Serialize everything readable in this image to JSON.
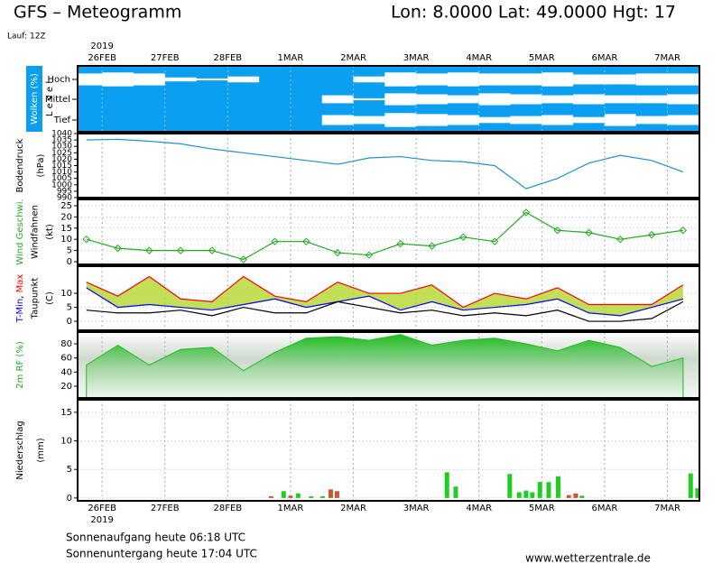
{
  "header": {
    "title": "GFS – Meteogramm",
    "location": "Lon: 8.0000 Lat: 49.0000 Hgt: 17",
    "run": "Lauf: 12Z"
  },
  "year_label": "2019",
  "footer": {
    "sunrise": "Sonnenaufgang heute 06:18 UTC",
    "sunset": "Sonnenuntergang heute 17:04 UTC",
    "source": "www.wetterzentrale.de"
  },
  "time_axis": {
    "xlim": [
      -0.39,
      9.51
    ],
    "xticks": [
      {
        "value": 0,
        "label": "26FEB"
      },
      {
        "value": 1,
        "label": "27FEB"
      },
      {
        "value": 2,
        "label": "28FEB"
      },
      {
        "value": 3,
        "label": "1MAR"
      },
      {
        "value": 4,
        "label": "2MAR"
      },
      {
        "value": 5,
        "label": "3MAR"
      },
      {
        "value": 6,
        "label": "4MAR"
      },
      {
        "value": 7,
        "label": "5MAR"
      },
      {
        "value": 8,
        "label": "6MAR"
      },
      {
        "value": 9,
        "label": "7MAR"
      }
    ]
  },
  "chart_data": [
    {
      "type": "band",
      "ylabel": [
        [
          "Wolken (%)"
        ],
        [
          "L e v e l"
        ]
      ],
      "ylabel_colors": [
        [
          "#ffffff"
        ],
        [
          "#000000"
        ]
      ],
      "ylabel_box": "#0a9ff0",
      "background": "#0a9ff0",
      "x": [
        -0.25,
        0.25,
        0.75,
        1.25,
        1.75,
        2.25,
        2.75,
        3.25,
        3.75,
        4.25,
        4.75,
        5.25,
        5.75,
        6.25,
        6.75,
        7.25,
        7.75,
        8.25,
        8.75,
        9.25
      ],
      "series": [
        {
          "name": "Hoch",
          "color": "#ffffff",
          "values": [
            60,
            70,
            60,
            20,
            10,
            30,
            0,
            0,
            0,
            30,
            70,
            60,
            70,
            60,
            60,
            70,
            50,
            50,
            60,
            60
          ]
        },
        {
          "name": "Mittel",
          "color": "#ffffff",
          "values": [
            0,
            0,
            0,
            0,
            0,
            0,
            0,
            0,
            40,
            10,
            60,
            50,
            40,
            60,
            50,
            40,
            50,
            40,
            40,
            50
          ]
        },
        {
          "name": "Tief",
          "color": "#ffffff",
          "values": [
            0,
            0,
            0,
            0,
            0,
            0,
            0,
            0,
            50,
            40,
            70,
            60,
            50,
            30,
            40,
            50,
            30,
            60,
            40,
            50
          ]
        }
      ]
    },
    {
      "type": "line",
      "ylabel": [
        [
          "Bodendruck"
        ],
        [
          "(hPa)"
        ]
      ],
      "ylabel_colors": [
        [
          "#000000"
        ],
        [
          "#000000"
        ]
      ],
      "ylim": [
        990,
        1040
      ],
      "yticks": [
        1040,
        1035,
        1030,
        1025,
        1020,
        1015,
        1010,
        1005,
        1000,
        995,
        990
      ],
      "grid": false,
      "x": [
        -0.25,
        0.25,
        0.75,
        1.25,
        1.75,
        2.25,
        2.75,
        3.25,
        3.75,
        4.25,
        4.75,
        5.25,
        5.75,
        6.25,
        6.75,
        7.25,
        7.75,
        8.25,
        8.75,
        9.25
      ],
      "series": [
        {
          "color": "#1e90d0",
          "values": [
            1035,
            1035.5,
            1034,
            1032,
            1028,
            1025,
            1022,
            1019,
            1016,
            1021,
            1022,
            1019,
            1018,
            1015,
            997,
            1005,
            1017,
            1023,
            1019,
            1010
          ]
        }
      ]
    },
    {
      "type": "line",
      "ylabel": [
        [
          "Wind Geschwi."
        ],
        [
          "Windfahnen"
        ],
        [
          "(kt)"
        ]
      ],
      "ylabel_colors": [
        [
          "#22aa22"
        ],
        [
          "#000000"
        ],
        [
          "#000000"
        ]
      ],
      "ylim": [
        -1.2,
        27.8
      ],
      "yticks": [
        25,
        20,
        15,
        10,
        5,
        0
      ],
      "grid": true,
      "markers": true,
      "x": [
        -0.25,
        0.25,
        0.75,
        1.25,
        1.75,
        2.25,
        2.75,
        3.25,
        3.75,
        4.25,
        4.75,
        5.25,
        5.75,
        6.25,
        6.75,
        7.25,
        7.75,
        8.25,
        8.75,
        9.25
      ],
      "series": [
        {
          "color": "#22aa22",
          "values": [
            10,
            6,
            5,
            5,
            5,
            1,
            9,
            9,
            4,
            3,
            8,
            7,
            11,
            9,
            22,
            14,
            13,
            10,
            12,
            14
          ]
        }
      ]
    },
    {
      "type": "line",
      "ylabel": [
        [
          "T-Min",
          ", ",
          "Max"
        ],
        [
          "Taupunkt"
        ],
        [
          "(C)"
        ]
      ],
      "ylabel_colors": [
        [
          "#0000ff",
          "#000000",
          "#ff0000"
        ],
        [
          "#000000"
        ],
        [
          "#000000"
        ]
      ],
      "ylim": [
        -3.2,
        19.7
      ],
      "yticks": [
        10,
        5,
        0
      ],
      "grid": true,
      "fill_between": "#b8d83a",
      "x": [
        -0.25,
        0.25,
        0.75,
        1.25,
        1.75,
        2.25,
        2.75,
        3.25,
        3.75,
        4.25,
        4.75,
        5.25,
        5.75,
        6.25,
        6.75,
        7.25,
        7.75,
        8.25,
        8.75,
        9.25
      ],
      "series": [
        {
          "color": "#ff0000",
          "values": [
            14,
            9,
            16,
            8,
            7,
            16,
            9,
            7,
            14,
            10,
            10,
            13,
            5,
            10,
            8,
            12,
            6,
            6,
            6,
            13
          ]
        },
        {
          "color": "#0000ff",
          "values": [
            12,
            5,
            6,
            5,
            4,
            6,
            8,
            5,
            7,
            9,
            4,
            7,
            4,
            5,
            6,
            8,
            3,
            2,
            5,
            8
          ]
        },
        {
          "color": "#000000",
          "values": [
            4,
            3,
            3,
            4,
            2,
            5,
            3,
            3,
            7,
            5,
            3,
            4,
            2,
            3,
            2,
            4,
            0,
            0,
            1,
            7
          ]
        }
      ]
    },
    {
      "type": "area",
      "ylabel": [
        [
          "2m RF (%)"
        ]
      ],
      "ylabel_colors": [
        [
          "#22aa22"
        ]
      ],
      "ylim": [
        3.4,
        96.6
      ],
      "yticks": [
        80,
        60,
        40,
        20
      ],
      "grid": false,
      "x": [
        -0.25,
        0.25,
        0.75,
        1.25,
        1.75,
        2.25,
        2.75,
        3.25,
        3.75,
        4.25,
        4.75,
        5.25,
        5.75,
        6.25,
        6.75,
        7.25,
        7.75,
        8.25,
        8.75,
        9.25
      ],
      "series": [
        {
          "color": "#22bb22",
          "values": [
            50,
            78,
            50,
            72,
            75,
            42,
            68,
            88,
            90,
            85,
            93,
            78,
            85,
            88,
            80,
            70,
            85,
            75,
            48,
            60
          ]
        }
      ]
    },
    {
      "type": "bar",
      "ylabel": [
        [
          "Niederschlag"
        ],
        [
          "(mm)"
        ]
      ],
      "ylabel_colors": [
        [
          "#000000"
        ],
        [
          "#000000"
        ]
      ],
      "ylim": [
        -0.5,
        17.2
      ],
      "yticks": [
        15,
        10,
        5,
        0
      ],
      "grid": true,
      "series": [
        {
          "color": "#cc5533",
          "x": [
            2.69,
            3.0,
            3.64,
            3.74,
            7.43,
            7.54
          ],
          "values": [
            0.3,
            0.4,
            1.5,
            1.2,
            0.5,
            0.8
          ]
        },
        {
          "color": "#22cc22",
          "x": [
            2.89,
            3.12,
            3.33,
            3.51,
            5.49,
            5.63,
            6.49,
            6.64,
            6.75,
            6.85,
            6.97,
            7.11,
            7.26,
            7.64,
            9.37,
            9.48
          ],
          "values": [
            1.2,
            0.8,
            0.3,
            0.3,
            4.5,
            2.0,
            4.2,
            1.0,
            1.3,
            1.0,
            2.8,
            2.8,
            3.8,
            0.4,
            4.3,
            1.7
          ]
        }
      ]
    }
  ]
}
